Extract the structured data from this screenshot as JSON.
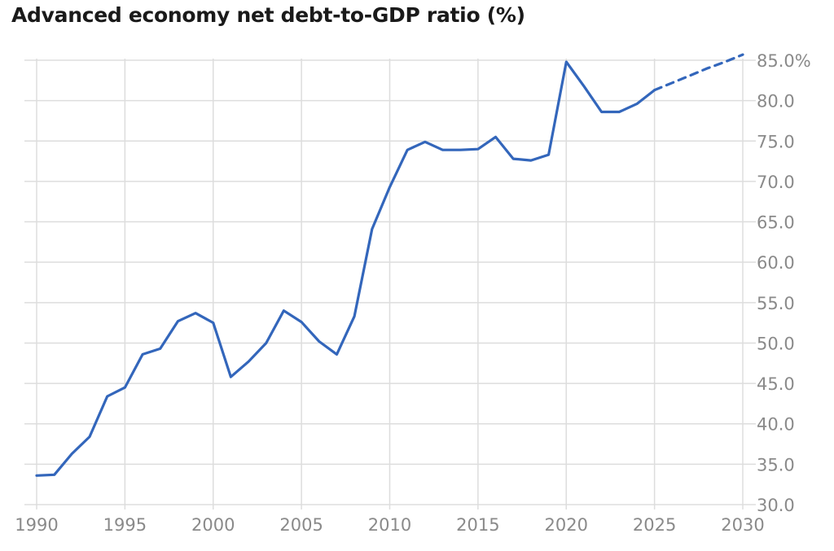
{
  "chart_data": {
    "type": "line",
    "title": "Advanced economy net debt-to-GDP ratio (%)",
    "xlabel": "",
    "ylabel": "",
    "xlim": [
      1990,
      2030
    ],
    "ylim": [
      30,
      86
    ],
    "x_ticks": [
      "1990",
      "1995",
      "2000",
      "2005",
      "2010",
      "2015",
      "2020",
      "2025",
      "2030"
    ],
    "y_ticks": [
      "30.0",
      "35.0",
      "40.0",
      "45.0",
      "50.0",
      "55.0",
      "60.0",
      "65.0",
      "70.0",
      "75.0",
      "80.0",
      "85.0%"
    ],
    "grid": true,
    "legend": "none",
    "color": "#3366bb",
    "series": [
      {
        "style": "solid",
        "x": [
          1990,
          1991,
          1992,
          1993,
          1994,
          1995,
          1996,
          1997,
          1998,
          1999,
          2000,
          2001,
          2002,
          2003,
          2004,
          2005,
          2006,
          2007,
          2008,
          2009,
          2010,
          2011,
          2012,
          2013,
          2014,
          2015,
          2016,
          2017,
          2018,
          2019,
          2020,
          2021,
          2022,
          2023,
          2024,
          2025
        ],
        "y": [
          33.6,
          33.7,
          36.3,
          38.4,
          43.4,
          44.5,
          48.6,
          49.3,
          52.7,
          53.7,
          52.5,
          45.8,
          47.7,
          50.0,
          54.0,
          52.6,
          50.2,
          48.6,
          53.3,
          64.1,
          69.3,
          73.9,
          74.9,
          73.9,
          73.9,
          74.0,
          75.5,
          72.8,
          72.6,
          73.3,
          84.8,
          81.8,
          78.6,
          78.6,
          79.6,
          81.3
        ]
      },
      {
        "style": "dashed",
        "x": [
          2025,
          2026,
          2027,
          2028,
          2029,
          2030
        ],
        "y": [
          81.3,
          82.2,
          83.1,
          84.0,
          84.8,
          85.7
        ]
      }
    ]
  }
}
